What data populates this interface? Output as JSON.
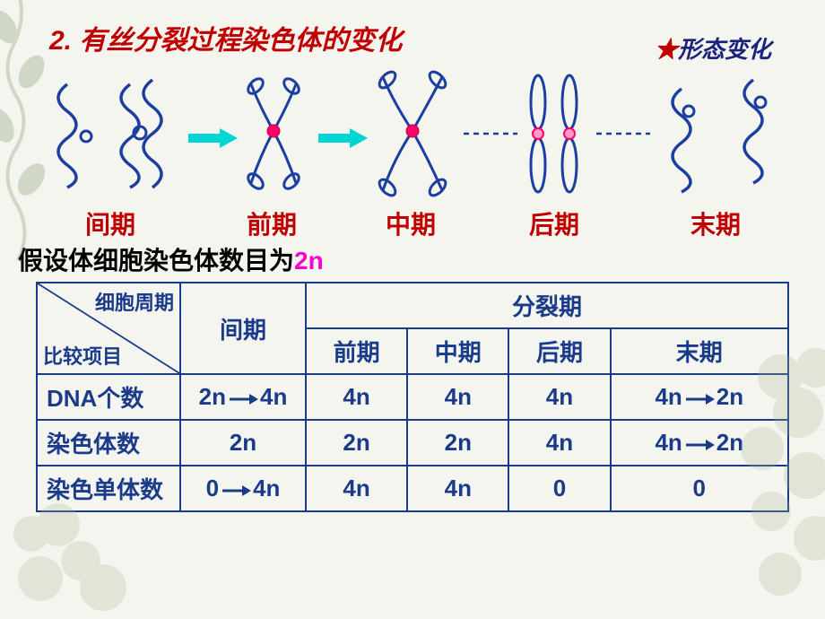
{
  "title": "2. 有丝分裂过程染色体的变化",
  "subtitle_star": "★",
  "subtitle_text": "形态变化",
  "assumption_prefix": "假设体细胞染色体数目为",
  "assumption_value": "2n",
  "phases": {
    "p1": "间期",
    "p2": "前期",
    "p3": "中期",
    "p4": "后期",
    "p5": "末期"
  },
  "phase_positions": {
    "p1": 95,
    "p2": 275,
    "p3": 430,
    "p4": 590,
    "p5": 770
  },
  "table": {
    "header_diag_upper": "细胞周期",
    "header_diag_lower": "比较项目",
    "header_interphase": "间期",
    "header_division": "分裂期",
    "sub_headers": [
      "前期",
      "中期",
      "后期",
      "末期"
    ],
    "rows": [
      {
        "label": "DNA个数",
        "interphase": {
          "type": "arrow",
          "from": "2n",
          "to": "4n"
        },
        "cells": [
          "4n",
          "4n",
          "4n",
          {
            "type": "arrow",
            "from": "4n",
            "to": "2n"
          }
        ]
      },
      {
        "label": "染色体数",
        "interphase": "2n",
        "cells": [
          "2n",
          "2n",
          "4n",
          {
            "type": "arrow",
            "from": "4n",
            "to": "2n"
          }
        ]
      },
      {
        "label": "染色单体数",
        "interphase": {
          "type": "arrow",
          "from": "0",
          "to": "4n"
        },
        "cells": [
          "4n",
          "4n",
          "0",
          "0"
        ]
      }
    ]
  },
  "colors": {
    "title_red": "#c00000",
    "subtitle_navy": "#1a237e",
    "table_blue": "#1a3a8a",
    "chromatin_blue": "#1b3fa0",
    "centromere": "#ff0066",
    "arrow_cyan": "#00d4d4",
    "magenta": "#ff00cc",
    "bg_leaf": "#5a7a4a"
  },
  "diagram": {
    "squiggle_stroke_width": 3.5,
    "chromosome_stroke_width": 3,
    "arrow_width": 40,
    "connector_dash": "6,5"
  }
}
